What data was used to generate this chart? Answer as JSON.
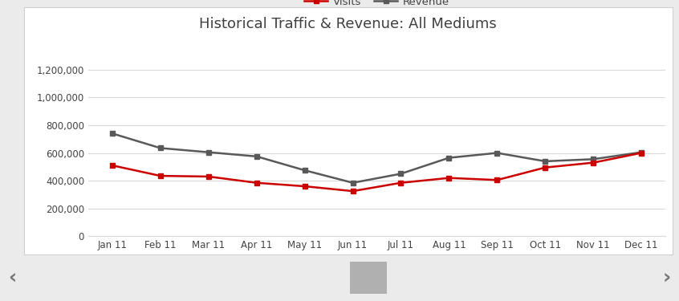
{
  "title": "Historical Traffic & Revenue: All Mediums",
  "months": [
    "Jan 11",
    "Feb 11",
    "Mar 11",
    "Apr 11",
    "May 11",
    "Jun 11",
    "Jul 11",
    "Aug 11",
    "Sep 11",
    "Oct 11",
    "Nov 11",
    "Dec 11"
  ],
  "visits": [
    510000,
    435000,
    430000,
    385000,
    360000,
    325000,
    385000,
    420000,
    405000,
    495000,
    530000,
    600000
  ],
  "revenue": [
    740000,
    635000,
    605000,
    575000,
    475000,
    385000,
    450000,
    565000,
    600000,
    540000,
    555000,
    605000
  ],
  "visits_color": "#cc0000",
  "revenue_color": "#595959",
  "plot_bg_color": "#ffffff",
  "grid_color": "#d9d9d9",
  "ylim": [
    0,
    1300000
  ],
  "yticks": [
    0,
    200000,
    400000,
    600000,
    800000,
    1000000,
    1200000
  ],
  "title_fontsize": 13,
  "tick_fontsize": 8.5,
  "legend_fontsize": 9.5,
  "outer_bg": "#ebebeb",
  "scrollbar_color": "#b0b0b0",
  "arrow_color": "#777777",
  "border_color": "#d0d0d0"
}
